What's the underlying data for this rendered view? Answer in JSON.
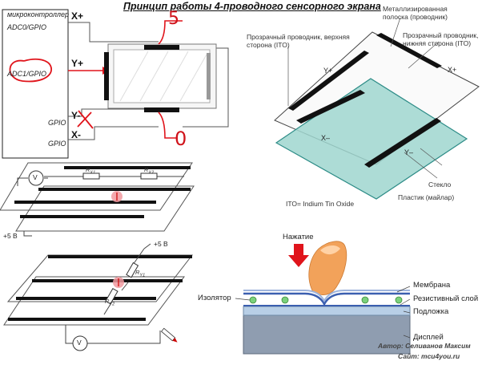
{
  "title": "Принцип работы 4-проводного сенсорного экрана",
  "mcu": {
    "name": "микроконтроллер",
    "ports": [
      "ADC0/GPIO",
      "ADC1/GPIO",
      "GPIO",
      "GPIO"
    ],
    "pins": [
      "X+",
      "Y+",
      "Y-",
      "X-"
    ]
  },
  "annotations": {
    "five": "5",
    "zero": "0"
  },
  "layers3d": {
    "metal_strip": "Металлизированная полоска (проводник)",
    "top_conductor": "Прозрачный проводник, верхняя сторона (ITO)",
    "bottom_conductor": "Прозрачный проводник, нижняя сторона (ITO)",
    "x_plus": "X+",
    "y_plus": "Y+",
    "x_minus": "X–",
    "y_minus": "Y–",
    "glass": "Стекло",
    "plastic": "Пластик (майлар)",
    "ito_note": "ITO= Indium Tin Oxide"
  },
  "circuit1": {
    "meter": "V",
    "r1": "R",
    "r1_sub": "X1",
    "r2": "R",
    "r2_sub": "X2",
    "supply": "+5 В"
  },
  "circuit2": {
    "supply": "+5 В",
    "r1": "R",
    "r1_sub": "Y1",
    "r2": "R",
    "r2_sub": "Y2",
    "meter": "V"
  },
  "cross_section": {
    "press": "Нажатие",
    "insulator": "Изолятор",
    "membrane": "Мембрана",
    "resistive": "Резистивный слой",
    "substrate": "Подложка",
    "display": "Дисплей"
  },
  "credits": {
    "author": "Автор: Селиванов Максим",
    "site": "Сайт: mcu4you.ru"
  }
}
